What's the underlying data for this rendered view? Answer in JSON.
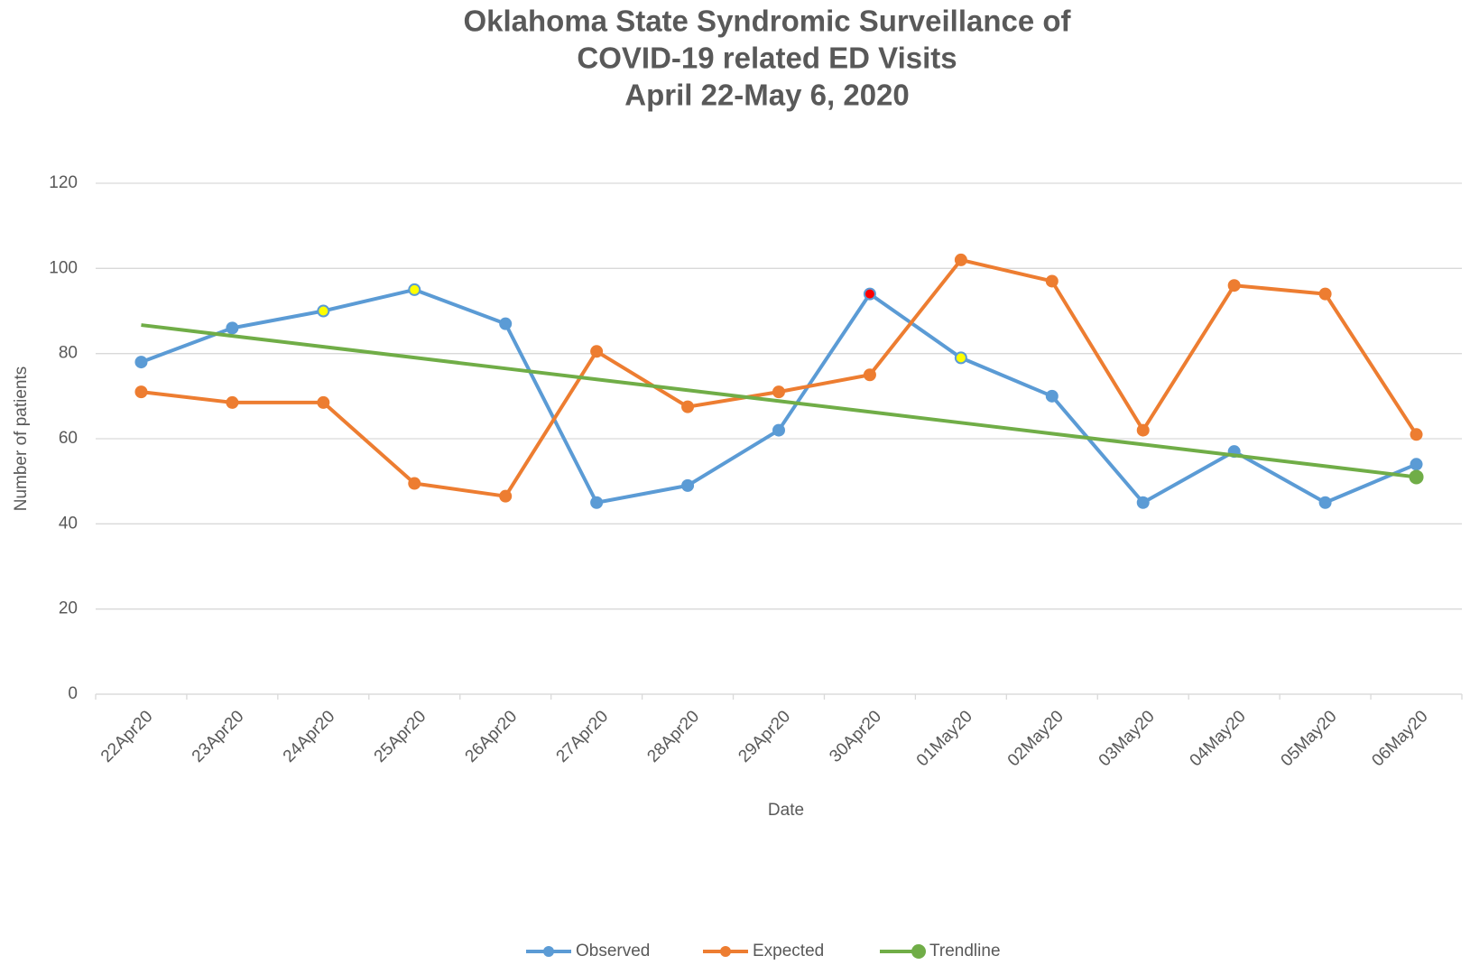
{
  "chart_data": {
    "type": "line",
    "title": [
      "Oklahoma State Syndromic Surveillance of",
      "COVID-19 related ED Visits",
      "April 22-May 6, 2020"
    ],
    "x_label": "Date",
    "y_label": "Number of patients",
    "categories": [
      "22Apr20",
      "23Apr20",
      "24Apr20",
      "25Apr20",
      "26Apr20",
      "27Apr20",
      "28Apr20",
      "29Apr20",
      "30Apr20",
      "01May20",
      "02May20",
      "03May20",
      "04May20",
      "05May20",
      "06May20"
    ],
    "series": [
      {
        "name": "Observed",
        "color": "#5b9bd5",
        "markers": "all",
        "values": [
          78,
          86,
          90,
          95,
          87,
          45,
          49,
          62,
          94,
          79,
          70,
          45,
          57,
          45,
          54
        ],
        "highlights": [
          {
            "index": 2,
            "color": "#ffff00"
          },
          {
            "index": 3,
            "color": "#ffff00"
          },
          {
            "index": 8,
            "color": "#ff0000"
          },
          {
            "index": 9,
            "color": "#ffff00"
          }
        ]
      },
      {
        "name": "Expected",
        "color": "#ed7d31",
        "markers": "all",
        "values": [
          71,
          68.5,
          68.5,
          49.5,
          46.5,
          80.5,
          67.5,
          71,
          75,
          102,
          97,
          62,
          96,
          94,
          61
        ]
      },
      {
        "name": "Trendline",
        "color": "#70ad47",
        "markers": "last",
        "values": [
          86.7,
          84.15,
          81.6,
          79.05,
          76.5,
          73.95,
          71.4,
          68.85,
          66.3,
          63.75,
          61.2,
          58.65,
          56.1,
          53.55,
          51
        ]
      }
    ],
    "ylim": [
      0,
      120
    ],
    "yticks": [
      0,
      20,
      40,
      60,
      80,
      100,
      120
    ],
    "grid": true,
    "legend": "bottom"
  }
}
